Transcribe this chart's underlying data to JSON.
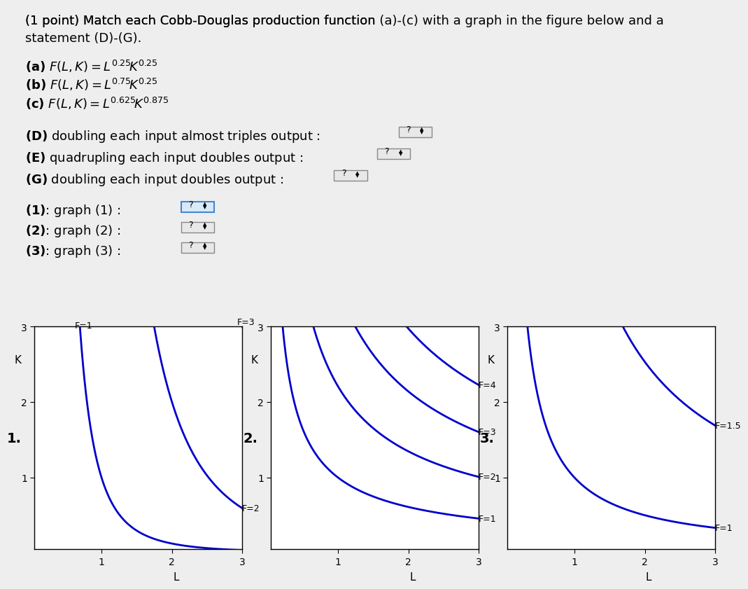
{
  "background_color": "#eeeeee",
  "text_color": "#000000",
  "graphs": [
    {
      "number": "1.",
      "alpha": 0.75,
      "beta": 0.25,
      "F_values": [
        1,
        2,
        3
      ],
      "F_labels": [
        "F=1",
        "F=2",
        "F=3"
      ],
      "label_at_bottom": true
    },
    {
      "number": "2.",
      "alpha": 0.625,
      "beta": 0.875,
      "F_values": [
        1,
        2,
        3,
        4
      ],
      "F_labels": [
        "F=1",
        "F=2",
        "F=3",
        "F=4"
      ],
      "label_at_bottom": false
    },
    {
      "number": "3.",
      "alpha": 0.25,
      "beta": 0.25,
      "F_values": [
        1,
        1.5
      ],
      "F_labels": [
        "F=1",
        "F=1.5"
      ],
      "label_at_bottom": false
    }
  ],
  "curve_color": "#0000cc",
  "curve_linewidth": 2.0,
  "panel_background": "#ffffff",
  "font_size_text": 13,
  "font_size_axis": 10,
  "font_size_curve_label": 9
}
